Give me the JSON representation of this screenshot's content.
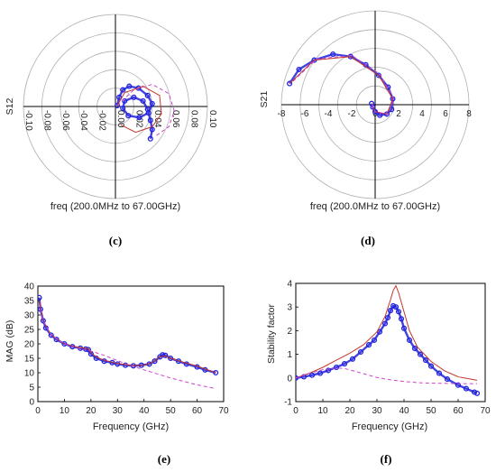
{
  "chart_data": [
    {
      "id": "c",
      "type": "polar",
      "panel_label": "(c)",
      "ylabel": "S12",
      "xlabel": "freq (200.0MHz to 67.00GHz)",
      "radial_range": [
        0,
        0.1
      ],
      "tick_labels": [
        "-0.10",
        "-0.08",
        "-0.06",
        "-0.04",
        "-0.02",
        "0.00",
        "0.02",
        "0.04",
        "0.06",
        "0.08",
        "0.10"
      ],
      "colors": {
        "measured": "#2222dd",
        "model": "#c0392b",
        "dashed": "#cc44cc"
      },
      "series": [
        {
          "style": "markers",
          "points": [
            [
              0.002,
              0.001
            ],
            [
              0.004,
              0.01
            ],
            [
              0.008,
              0.018
            ],
            [
              0.015,
              0.022
            ],
            [
              0.025,
              0.02
            ],
            [
              0.035,
              0.012
            ],
            [
              0.04,
              0.003
            ],
            [
              0.036,
              -0.007
            ],
            [
              0.026,
              -0.012
            ],
            [
              0.014,
              -0.01
            ],
            [
              0.008,
              -0.002
            ],
            [
              0.01,
              0.006
            ],
            [
              0.02,
              0.01
            ],
            [
              0.03,
              0.006
            ],
            [
              0.035,
              -0.003
            ],
            [
              0.038,
              -0.015
            ],
            [
              0.04,
              -0.025
            ],
            [
              0.038,
              -0.035
            ]
          ]
        },
        {
          "style": "solid",
          "points": [
            [
              0.002,
              0.001
            ],
            [
              0.01,
              0.015
            ],
            [
              0.03,
              0.022
            ],
            [
              0.048,
              0.012
            ],
            [
              0.05,
              -0.008
            ],
            [
              0.04,
              -0.022
            ],
            [
              0.022,
              -0.028
            ],
            [
              0.006,
              -0.02
            ]
          ]
        },
        {
          "style": "dashed",
          "points": [
            [
              0.002,
              0.001
            ],
            [
              0.02,
              0.018
            ],
            [
              0.04,
              0.024
            ],
            [
              0.058,
              0.014
            ],
            [
              0.064,
              -0.005
            ],
            [
              0.058,
              -0.022
            ],
            [
              0.044,
              -0.032
            ]
          ]
        }
      ]
    },
    {
      "id": "d",
      "type": "polar",
      "panel_label": "(d)",
      "ylabel": "S21",
      "xlabel": "freq (200.0MHz to 67.00GHz)",
      "radial_range": [
        0,
        8
      ],
      "tick_labels": [
        "-8",
        "-6",
        "-4",
        "-2",
        "0",
        "2",
        "4",
        "6",
        "8"
      ],
      "colors": {
        "measured": "#2222dd",
        "model": "#c0392b",
        "dashed": "#cc44cc"
      },
      "series": [
        {
          "style": "markers",
          "points": [
            [
              -7.3,
              1.8
            ],
            [
              -6.5,
              3.0
            ],
            [
              -5.2,
              3.8
            ],
            [
              -3.6,
              4.3
            ],
            [
              -2.1,
              4.1
            ],
            [
              -0.8,
              3.4
            ],
            [
              0.3,
              2.5
            ],
            [
              1.1,
              1.5
            ],
            [
              1.5,
              0.5
            ],
            [
              1.4,
              -0.4
            ],
            [
              1.0,
              -0.8
            ],
            [
              0.4,
              -0.9
            ],
            [
              0.0,
              -0.6
            ],
            [
              -0.2,
              -0.2
            ],
            [
              -0.3,
              0.1
            ]
          ]
        },
        {
          "style": "solid",
          "points": [
            [
              -7.3,
              1.8
            ],
            [
              -5.2,
              3.8
            ],
            [
              -2.1,
              4.1
            ],
            [
              0.3,
              2.5
            ],
            [
              1.5,
              0.5
            ],
            [
              1.0,
              -0.8
            ],
            [
              0.0,
              -0.6
            ],
            [
              -0.3,
              0.1
            ]
          ]
        },
        {
          "style": "dashed",
          "points": [
            [
              -7.0,
              2.0
            ],
            [
              -5.0,
              3.9
            ],
            [
              -2.0,
              4.2
            ],
            [
              0.4,
              2.6
            ],
            [
              1.6,
              0.5
            ],
            [
              1.1,
              -0.8
            ],
            [
              0.0,
              -0.6
            ],
            [
              -0.3,
              0.1
            ]
          ]
        }
      ]
    },
    {
      "id": "e",
      "type": "line",
      "panel_label": "(e)",
      "ylabel": "MAG (dB)",
      "xlabel": "Frequency (GHz)",
      "xlim": [
        0,
        70
      ],
      "ylim": [
        0,
        40
      ],
      "x_ticks": [
        "0",
        "10",
        "20",
        "30",
        "40",
        "50",
        "60",
        "70"
      ],
      "y_ticks": [
        "0",
        "5",
        "10",
        "15",
        "20",
        "25",
        "30",
        "35",
        "40"
      ],
      "colors": {
        "measured": "#2222dd",
        "model": "#c0392b",
        "dashed": "#cc44cc"
      },
      "series": [
        {
          "style": "markers",
          "x": [
            0.5,
            1,
            2,
            3,
            5,
            7,
            10,
            13,
            16,
            18,
            19,
            20,
            22,
            25,
            28,
            30,
            33,
            36,
            39,
            42,
            44,
            46,
            47,
            48,
            50,
            53,
            56,
            60,
            63,
            67
          ],
          "y": [
            36,
            32,
            28,
            25.5,
            23,
            21.5,
            20,
            19,
            18.5,
            18.2,
            18,
            16.5,
            15,
            14,
            13.5,
            13,
            12.6,
            12.4,
            12.6,
            13,
            14,
            15.5,
            16.2,
            16,
            15,
            14,
            13,
            12,
            11,
            10
          ]
        },
        {
          "style": "solid",
          "x": [
            0.5,
            2,
            5,
            10,
            15,
            19,
            20,
            22,
            25,
            30,
            35,
            40,
            43,
            46,
            48,
            50,
            55,
            60,
            67
          ],
          "y": [
            35,
            28,
            23,
            20,
            18.8,
            18.3,
            17,
            15.5,
            14.3,
            13.2,
            12.5,
            12.6,
            13.5,
            15.5,
            15.8,
            15,
            13.6,
            12.3,
            10
          ]
        },
        {
          "style": "dashed",
          "x": [
            0.5,
            2,
            5,
            10,
            15,
            20,
            25,
            30,
            35,
            40,
            45,
            50,
            55,
            60,
            67
          ],
          "y": [
            34,
            28,
            23,
            20,
            18.5,
            17.5,
            16,
            14.2,
            12.5,
            11,
            9.6,
            8.2,
            7,
            5.8,
            4.5
          ]
        }
      ]
    },
    {
      "id": "f",
      "type": "line",
      "panel_label": "(f)",
      "ylabel": "Stability factor",
      "xlabel": "Frequency (GHz)",
      "xlim": [
        0,
        70
      ],
      "ylim": [
        -1,
        4
      ],
      "x_ticks": [
        "0",
        "10",
        "20",
        "30",
        "40",
        "50",
        "60",
        "70"
      ],
      "y_ticks": [
        "-1",
        "0",
        "1",
        "2",
        "3",
        "4"
      ],
      "colors": {
        "measured": "#2222dd",
        "model": "#c0392b",
        "dashed": "#cc44cc"
      },
      "series": [
        {
          "style": "markers",
          "x": [
            0,
            3,
            6,
            9,
            12,
            15,
            18,
            21,
            24,
            27,
            29,
            31,
            33,
            34,
            35,
            36,
            37,
            38,
            39,
            40,
            42,
            44,
            46,
            48,
            50,
            53,
            56,
            60,
            63,
            66,
            67
          ],
          "y": [
            0,
            0.05,
            0.12,
            0.2,
            0.32,
            0.45,
            0.6,
            0.8,
            1.1,
            1.4,
            1.6,
            1.95,
            2.3,
            2.55,
            2.85,
            3.05,
            3.0,
            2.8,
            2.5,
            2.1,
            1.6,
            1.25,
            1.0,
            0.75,
            0.5,
            0.2,
            -0.05,
            -0.3,
            -0.45,
            -0.6,
            -0.65
          ]
        },
        {
          "style": "solid",
          "x": [
            0,
            5,
            10,
            15,
            20,
            25,
            30,
            33,
            35,
            36,
            37,
            38,
            40,
            42,
            45,
            50,
            55,
            60,
            67
          ],
          "y": [
            0,
            0.2,
            0.45,
            0.75,
            1.05,
            1.4,
            1.95,
            2.6,
            3.3,
            3.7,
            3.9,
            3.6,
            2.8,
            2.0,
            1.3,
            0.7,
            0.3,
            0.05,
            -0.1
          ]
        },
        {
          "style": "dashed",
          "x": [
            0,
            5,
            10,
            15,
            18,
            22,
            26,
            30,
            35,
            40,
            45,
            50,
            55,
            60,
            67
          ],
          "y": [
            0,
            0.2,
            0.35,
            0.42,
            0.4,
            0.28,
            0.15,
            0.02,
            -0.08,
            -0.15,
            -0.2,
            -0.22,
            -0.23,
            -0.24,
            -0.24
          ]
        }
      ]
    }
  ]
}
